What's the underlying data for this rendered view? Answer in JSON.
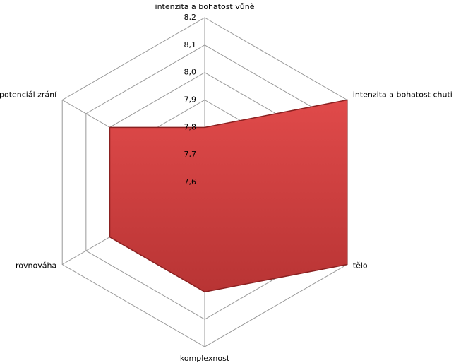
{
  "chart_data": {
    "type": "radar",
    "categories": [
      "intenzita a bohatost vůně",
      "intenzita a bohatost chuti",
      "tělo",
      "komplexnost",
      "rovnováha",
      "potenciál zrání"
    ],
    "values": [
      7.8,
      8.2,
      8.2,
      8.0,
      8.0,
      8.0
    ],
    "color": "#d24545",
    "rlim": [
      7.6,
      8.2
    ],
    "rticks": [
      {
        "value": 7.6,
        "label": "7,6"
      },
      {
        "value": 7.7,
        "label": "7,7"
      },
      {
        "value": 7.8,
        "label": "7,8"
      },
      {
        "value": 7.9,
        "label": "7,9"
      },
      {
        "value": 8.0,
        "label": "8,0"
      },
      {
        "value": 8.1,
        "label": "8,1"
      },
      {
        "value": 8.2,
        "label": "8,2"
      }
    ],
    "grid": true
  }
}
